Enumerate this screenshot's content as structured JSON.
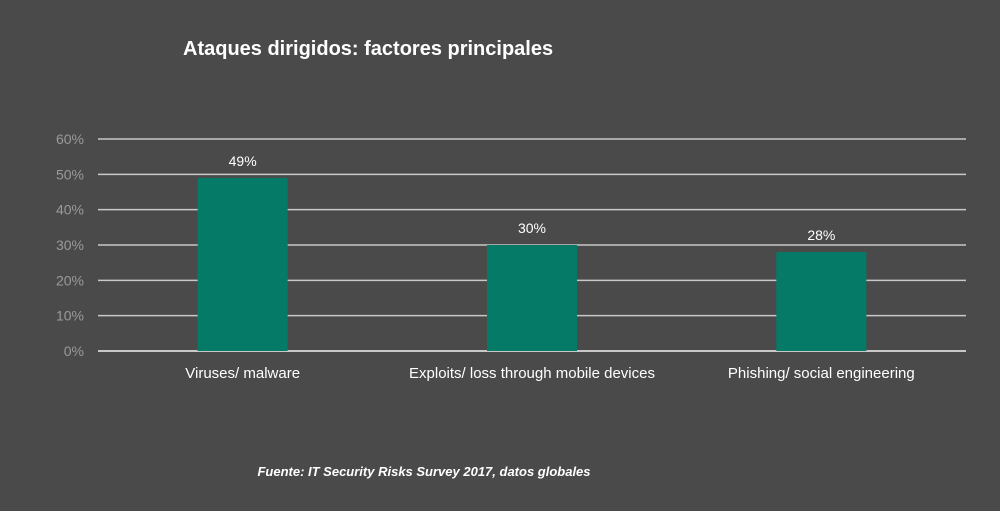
{
  "chart_data": {
    "type": "bar",
    "title": "Ataques dirigidos: factores principales",
    "categories": [
      "Viruses/ malware",
      "Exploits/ loss through mobile devices",
      "Phishing/ social engineering"
    ],
    "values": [
      49,
      30,
      28
    ],
    "data_labels": [
      "49%",
      "30%",
      "28%"
    ],
    "y_ticks": [
      {
        "value": 0,
        "label": "0%"
      },
      {
        "value": 10,
        "label": "10%"
      },
      {
        "value": 20,
        "label": "20%"
      },
      {
        "value": 30,
        "label": "30%"
      },
      {
        "value": 40,
        "label": "40%"
      },
      {
        "value": 50,
        "label": "50%"
      },
      {
        "value": 60,
        "label": "60%"
      }
    ],
    "ylim": [
      0,
      60
    ],
    "grid": true,
    "xlabel": "",
    "ylabel": "",
    "bar_color": "#057a66",
    "grid_color": "#c8c8c8",
    "background_color": "#4a4a4a"
  },
  "footer": {
    "source": "Fuente: IT Security Risks Survey 2017, datos globales"
  }
}
